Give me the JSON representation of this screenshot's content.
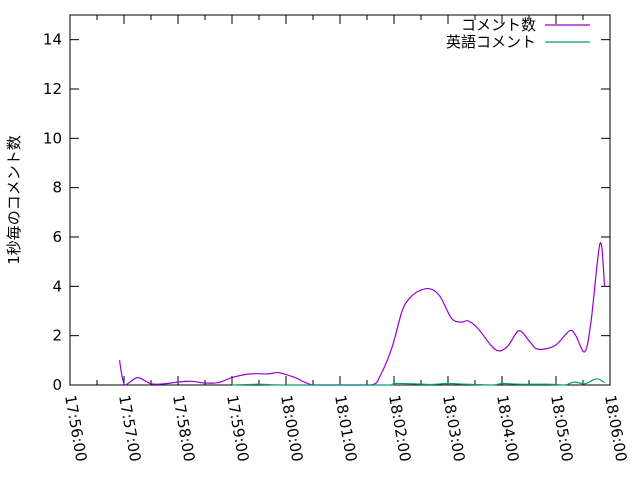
{
  "chart_data": {
    "type": "line",
    "title": "",
    "xlabel": "",
    "ylabel": "1秒毎のコメント数",
    "xlim": [
      "17:56:00",
      "18:06:00"
    ],
    "ylim": [
      0,
      15
    ],
    "x_ticks": [
      "17:56:00",
      "17:57:00",
      "17:58:00",
      "17:59:00",
      "18:00:00",
      "18:01:00",
      "18:02:00",
      "18:03:00",
      "18:04:00",
      "18:05:00",
      "18:06:00"
    ],
    "y_ticks": [
      "0",
      "2",
      "4",
      "6",
      "8",
      "10",
      "12",
      "14"
    ],
    "grid": false,
    "legend_position": "top-right",
    "series": [
      {
        "name": "コメント数",
        "color": "#9400d3",
        "points": [
          [
            "17:56:55",
            1.0
          ],
          [
            "17:57:01",
            0.0
          ],
          [
            "17:57:15",
            0.3
          ],
          [
            "17:57:30",
            0.05
          ],
          [
            "17:57:45",
            0.05
          ],
          [
            "17:58:00",
            0.12
          ],
          [
            "17:58:15",
            0.15
          ],
          [
            "17:58:30",
            0.08
          ],
          [
            "17:58:45",
            0.1
          ],
          [
            "17:59:00",
            0.3
          ],
          [
            "17:59:20",
            0.45
          ],
          [
            "17:59:40",
            0.45
          ],
          [
            "17:59:52",
            0.5
          ],
          [
            "18:00:10",
            0.3
          ],
          [
            "18:00:30",
            0.0
          ],
          [
            "18:01:00",
            0.0
          ],
          [
            "18:01:35",
            0.0
          ],
          [
            "18:01:45",
            0.4
          ],
          [
            "18:01:58",
            1.55
          ],
          [
            "18:02:09",
            3.0
          ],
          [
            "18:02:17",
            3.5
          ],
          [
            "18:02:27",
            3.8
          ],
          [
            "18:02:40",
            3.9
          ],
          [
            "18:02:51",
            3.6
          ],
          [
            "18:03:04",
            2.7
          ],
          [
            "18:03:15",
            2.55
          ],
          [
            "18:03:22",
            2.6
          ],
          [
            "18:03:33",
            2.3
          ],
          [
            "18:03:48",
            1.6
          ],
          [
            "18:03:57",
            1.38
          ],
          [
            "18:04:07",
            1.6
          ],
          [
            "18:04:19",
            2.2
          ],
          [
            "18:04:31",
            1.75
          ],
          [
            "18:04:40",
            1.45
          ],
          [
            "18:04:59",
            1.6
          ],
          [
            "18:05:15",
            2.2
          ],
          [
            "18:05:22",
            2.0
          ],
          [
            "18:05:32",
            1.35
          ],
          [
            "18:05:39",
            2.6
          ],
          [
            "18:05:49",
            5.75
          ],
          [
            "18:05:54",
            4.0
          ]
        ]
      },
      {
        "name": "英語コメント",
        "color": "#009e73",
        "points": [
          [
            "17:59:00",
            0.0
          ],
          [
            "17:59:30",
            0.03
          ],
          [
            "18:00:00",
            0.0
          ],
          [
            "18:01:50",
            0.0
          ],
          [
            "18:02:00",
            0.06
          ],
          [
            "18:02:20",
            0.05
          ],
          [
            "18:02:40",
            0.02
          ],
          [
            "18:03:00",
            0.06
          ],
          [
            "18:03:20",
            0.03
          ],
          [
            "18:03:50",
            0.0
          ],
          [
            "18:04:00",
            0.06
          ],
          [
            "18:04:20",
            0.03
          ],
          [
            "18:04:50",
            0.03
          ],
          [
            "18:05:10",
            0.0
          ],
          [
            "18:05:20",
            0.12
          ],
          [
            "18:05:32",
            0.05
          ],
          [
            "18:05:45",
            0.25
          ],
          [
            "18:05:54",
            0.1
          ]
        ]
      }
    ]
  }
}
